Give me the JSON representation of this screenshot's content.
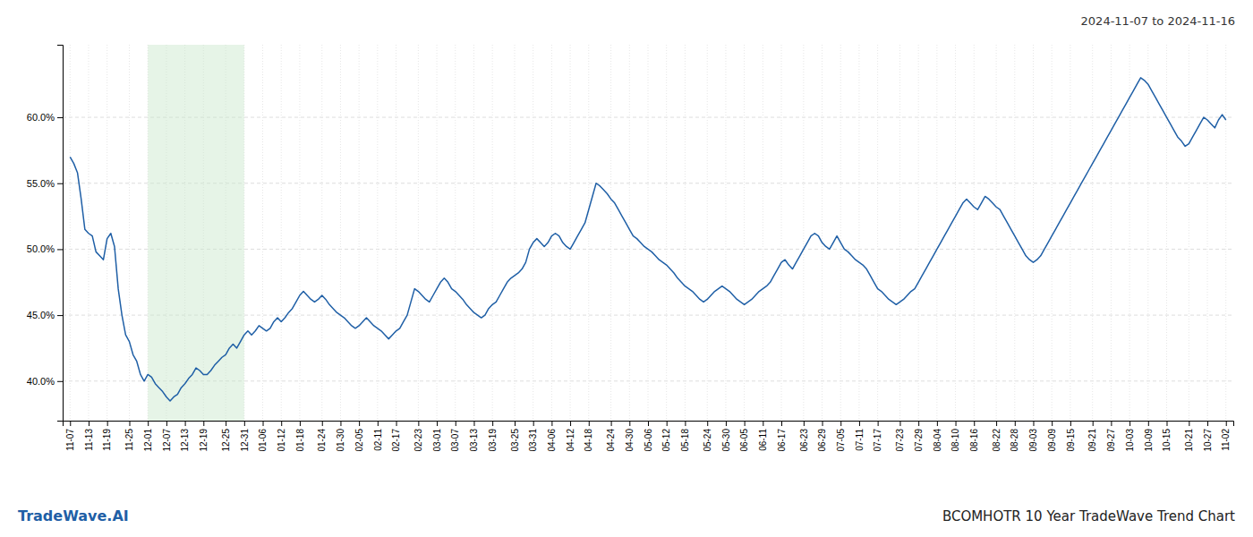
{
  "chart_data": {
    "type": "line",
    "title": "BCOMHOTR 10 Year TradeWave Trend Chart",
    "subtitle": "2024-11-07 to 2024-11-16",
    "annotations": [
      "TradeWave.AI"
    ],
    "color": "#1f5fa6",
    "grid": true,
    "highlight": {
      "from": "12-01",
      "to": "12-31",
      "color": "#c8e6c9"
    },
    "ylim": [
      37.0,
      65.5
    ],
    "yticks": [
      {
        "value": 40.0,
        "label": "40.0%"
      },
      {
        "value": 45.0,
        "label": "45.0%"
      },
      {
        "value": 50.0,
        "label": "50.0%"
      },
      {
        "value": 55.0,
        "label": "55.0%"
      },
      {
        "value": 60.0,
        "label": "60.0%"
      }
    ],
    "categories": [
      "11-07",
      null,
      null,
      null,
      null,
      "11-13",
      null,
      null,
      null,
      null,
      "11-19",
      null,
      null,
      null,
      null,
      null,
      "11-25",
      null,
      null,
      null,
      null,
      "12-01",
      null,
      null,
      null,
      null,
      "12-07",
      null,
      null,
      null,
      null,
      "12-13",
      null,
      null,
      null,
      null,
      "12-19",
      null,
      null,
      null,
      null,
      null,
      "12-25",
      null,
      null,
      null,
      null,
      "12-31",
      null,
      null,
      null,
      null,
      "01-06",
      null,
      null,
      null,
      null,
      "01-12",
      null,
      null,
      null,
      null,
      "01-18",
      null,
      null,
      null,
      null,
      null,
      "01-24",
      null,
      null,
      null,
      null,
      "01-30",
      null,
      null,
      null,
      null,
      "02-05",
      null,
      null,
      null,
      null,
      "02-11",
      null,
      null,
      null,
      null,
      "02-17",
      null,
      null,
      null,
      null,
      null,
      "02-23",
      null,
      null,
      null,
      null,
      "03-01",
      null,
      null,
      null,
      null,
      "03-07",
      null,
      null,
      null,
      null,
      "03-13",
      null,
      null,
      null,
      null,
      "03-19",
      null,
      null,
      null,
      null,
      null,
      "03-25",
      null,
      null,
      null,
      null,
      "03-31",
      null,
      null,
      null,
      null,
      "04-06",
      null,
      null,
      null,
      null,
      "04-12",
      null,
      null,
      null,
      null,
      "04-18",
      null,
      null,
      null,
      null,
      null,
      "04-24",
      null,
      null,
      null,
      null,
      "04-30",
      null,
      null,
      null,
      null,
      "05-06",
      null,
      null,
      null,
      null,
      "05-12",
      null,
      null,
      null,
      null,
      "05-18",
      null,
      null,
      null,
      null,
      null,
      "05-24",
      null,
      null,
      null,
      null,
      "05-30",
      null,
      null,
      null,
      null,
      "06-05",
      null,
      null,
      null,
      null,
      "06-11",
      null,
      null,
      null,
      null,
      "06-17",
      null,
      null,
      null,
      null,
      null,
      "06-23",
      null,
      null,
      null,
      null,
      "06-29",
      null,
      null,
      null,
      null,
      "07-05",
      null,
      null,
      null,
      null,
      "07-11",
      null,
      null,
      null,
      null,
      "07-17",
      null,
      null,
      null,
      null,
      null,
      "07-23",
      null,
      null,
      null,
      null,
      "07-29",
      null,
      null,
      null,
      null,
      "08-04",
      null,
      null,
      null,
      null,
      "08-10",
      null,
      null,
      null,
      null,
      "08-16",
      null,
      null,
      null,
      null,
      null,
      "08-22",
      null,
      null,
      null,
      null,
      "08-28",
      null,
      null,
      null,
      null,
      "09-03",
      null,
      null,
      null,
      null,
      "09-09",
      null,
      null,
      null,
      null,
      "09-15",
      null,
      null,
      null,
      null,
      null,
      "09-21",
      null,
      null,
      null,
      null,
      "09-27",
      null,
      null,
      null,
      null,
      "10-03",
      null,
      null,
      null,
      null,
      "10-09",
      null,
      null,
      null,
      null,
      "10-15",
      null,
      null,
      null,
      null,
      null,
      "10-21",
      null,
      null,
      null,
      null,
      "10-27",
      null,
      null,
      null,
      null,
      "11-02"
    ],
    "values": [
      57.0,
      56.5,
      55.8,
      53.8,
      51.5,
      51.2,
      51.0,
      49.8,
      49.5,
      49.2,
      50.8,
      51.2,
      50.2,
      47.0,
      45.0,
      43.5,
      43.0,
      42.0,
      41.5,
      40.5,
      40.0,
      40.5,
      40.3,
      39.8,
      39.5,
      39.2,
      38.8,
      38.5,
      38.8,
      39.0,
      39.5,
      39.8,
      40.2,
      40.5,
      41.0,
      40.8,
      40.5,
      40.5,
      40.8,
      41.2,
      41.5,
      41.8,
      42.0,
      42.5,
      42.8,
      42.5,
      43.0,
      43.5,
      43.8,
      43.5,
      43.8,
      44.2,
      44.0,
      43.8,
      44.0,
      44.5,
      44.8,
      44.5,
      44.8,
      45.2,
      45.5,
      46.0,
      46.5,
      46.8,
      46.5,
      46.2,
      46.0,
      46.2,
      46.5,
      46.2,
      45.8,
      45.5,
      45.2,
      45.0,
      44.8,
      44.5,
      44.2,
      44.0,
      44.2,
      44.5,
      44.8,
      44.5,
      44.2,
      44.0,
      43.8,
      43.5,
      43.2,
      43.5,
      43.8,
      44.0,
      44.5,
      45.0,
      46.0,
      47.0,
      46.8,
      46.5,
      46.2,
      46.0,
      46.5,
      47.0,
      47.5,
      47.8,
      47.5,
      47.0,
      46.8,
      46.5,
      46.2,
      45.8,
      45.5,
      45.2,
      45.0,
      44.8,
      45.0,
      45.5,
      45.8,
      46.0,
      46.5,
      47.0,
      47.5,
      47.8,
      48.0,
      48.2,
      48.5,
      49.0,
      50.0,
      50.5,
      50.8,
      50.5,
      50.2,
      50.5,
      51.0,
      51.2,
      51.0,
      50.5,
      50.2,
      50.0,
      50.5,
      51.0,
      51.5,
      52.0,
      53.0,
      54.0,
      55.0,
      54.8,
      54.5,
      54.2,
      53.8,
      53.5,
      53.0,
      52.5,
      52.0,
      51.5,
      51.0,
      50.8,
      50.5,
      50.2,
      50.0,
      49.8,
      49.5,
      49.2,
      49.0,
      48.8,
      48.5,
      48.2,
      47.8,
      47.5,
      47.2,
      47.0,
      46.8,
      46.5,
      46.2,
      46.0,
      46.2,
      46.5,
      46.8,
      47.0,
      47.2,
      47.0,
      46.8,
      46.5,
      46.2,
      46.0,
      45.8,
      46.0,
      46.2,
      46.5,
      46.8,
      47.0,
      47.2,
      47.5,
      48.0,
      48.5,
      49.0,
      49.2,
      48.8,
      48.5,
      49.0,
      49.5,
      50.0,
      50.5,
      51.0,
      51.2,
      51.0,
      50.5,
      50.2,
      50.0,
      50.5,
      51.0,
      50.5,
      50.0,
      49.8,
      49.5,
      49.2,
      49.0,
      48.8,
      48.5,
      48.0,
      47.5,
      47.0,
      46.8,
      46.5,
      46.2,
      46.0,
      45.8,
      46.0,
      46.2,
      46.5,
      46.8,
      47.0,
      47.5,
      48.0,
      48.5,
      49.0,
      49.5,
      50.0,
      50.5,
      51.0,
      51.5,
      52.0,
      52.5,
      53.0,
      53.5,
      53.8,
      53.5,
      53.2,
      53.0,
      53.5,
      54.0,
      53.8,
      53.5,
      53.2,
      53.0,
      52.5,
      52.0,
      51.5,
      51.0,
      50.5,
      50.0,
      49.5,
      49.2,
      49.0,
      49.2,
      49.5,
      50.0,
      50.5,
      51.0,
      51.5,
      52.0,
      52.5,
      53.0,
      53.5,
      54.0,
      54.5,
      55.0,
      55.5,
      56.0,
      56.5,
      57.0,
      57.5,
      58.0,
      58.5,
      59.0,
      59.5,
      60.0,
      60.5,
      61.0,
      61.5,
      62.0,
      62.5,
      63.0,
      62.8,
      62.5,
      62.0,
      61.5,
      61.0,
      60.5,
      60.0,
      59.5,
      59.0,
      58.5,
      58.2,
      57.8,
      58.0,
      58.5,
      59.0,
      59.5,
      60.0,
      59.8,
      59.5,
      59.2,
      59.8,
      60.2,
      59.8
    ]
  }
}
